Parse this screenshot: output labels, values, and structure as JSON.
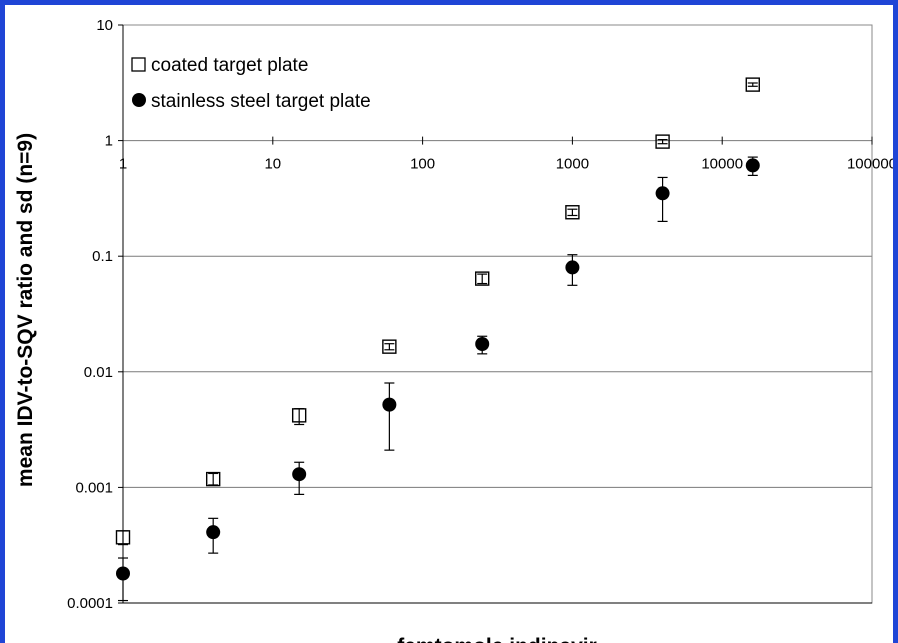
{
  "chart_data": {
    "type": "scatter",
    "title": "",
    "xlabel": "femtomole indinavir",
    "ylabel": "mean IDV-to-SQV ratio and sd (n=9)",
    "x_scale": "log",
    "y_scale": "log",
    "xlim": [
      1,
      100000
    ],
    "ylim": [
      0.0001,
      10
    ],
    "x_ticks": [
      "1",
      "10",
      "100",
      "1000",
      "10000",
      "100000"
    ],
    "y_ticks": [
      "0.0001",
      "0.001",
      "0.01",
      "0.1",
      "1",
      "10"
    ],
    "grid": "horizontal major",
    "legend_position": "top-left",
    "series": [
      {
        "name": "coated target plate",
        "marker": "open-square",
        "color": "#000000",
        "x": [
          1,
          4,
          15,
          60,
          250,
          1000,
          4000,
          16000
        ],
        "y": [
          0.00037,
          0.00118,
          0.0042,
          0.0165,
          0.064,
          0.24,
          0.98,
          3.05
        ],
        "y_err_low": [
          0.00032,
          0.00105,
          0.0035,
          0.0155,
          0.058,
          0.225,
          0.94,
          2.95
        ],
        "y_err_high": [
          0.00042,
          0.00132,
          0.0048,
          0.0175,
          0.07,
          0.255,
          1.02,
          3.15
        ]
      },
      {
        "name": "stainless steel target plate",
        "marker": "filled-circle",
        "color": "#000000",
        "x": [
          1,
          4,
          15,
          60,
          250,
          1000,
          4000,
          16000
        ],
        "y": [
          0.00018,
          0.00041,
          0.0013,
          0.0052,
          0.0174,
          0.08,
          0.35,
          0.61
        ],
        "y_err_low": [
          0.000105,
          0.00027,
          0.00087,
          0.0021,
          0.0143,
          0.056,
          0.2,
          0.5
        ],
        "y_err_high": [
          0.000245,
          0.00054,
          0.00165,
          0.008,
          0.0203,
          0.103,
          0.48,
          0.72
        ]
      }
    ]
  }
}
